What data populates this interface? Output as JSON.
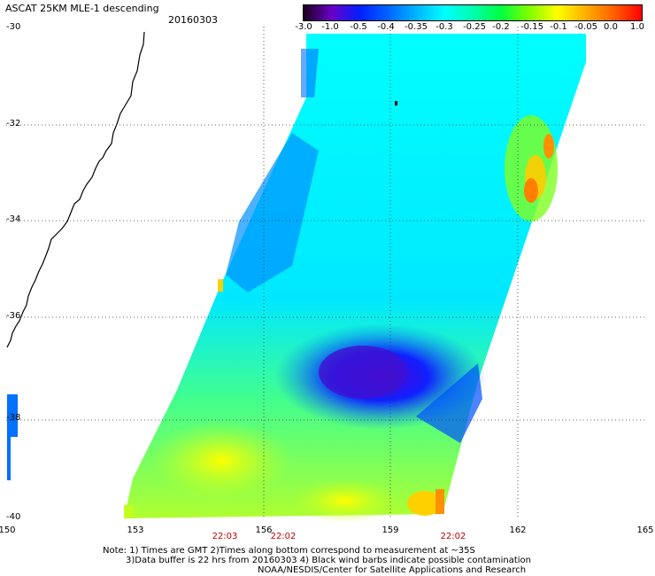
{
  "header": {
    "title": "ASCAT 25KM MLE-1 descending",
    "date": "20160303"
  },
  "colorbar": {
    "labels": [
      "-3.0",
      "-1.0",
      "-0.5",
      "-0.4",
      "-0.35",
      "-0.3",
      "-0.25",
      "-0.2",
      "-0.15",
      "-0.1",
      "-0.05",
      "0.0",
      "1.0"
    ],
    "colors": [
      "#1a001a",
      "#6a00c8",
      "#0020ff",
      "#0064ff",
      "#00b4ff",
      "#00ffff",
      "#00ffb0",
      "#00ff40",
      "#80ff00",
      "#ffff00",
      "#ffb000",
      "#ff6000",
      "#ff0000"
    ]
  },
  "axes": {
    "lat_labels": [
      "-30",
      "-32",
      "-34",
      "-36",
      "-38",
      "-40"
    ],
    "lon_labels": [
      "150",
      "153",
      "156",
      "159",
      "162",
      "165"
    ]
  },
  "times": [
    "22:03",
    "22:02",
    "22:02"
  ],
  "notes": {
    "line1": "Note: 1) Times are GMT 2)Times along bottom correspond to measurement at ~35S",
    "line2": "3)Data buffer is 22 hrs from 20160303 4) Black wind barbs indicate possible contamination",
    "line3": "NOAA/NESDIS/Center for Satellite Applications and Research"
  }
}
